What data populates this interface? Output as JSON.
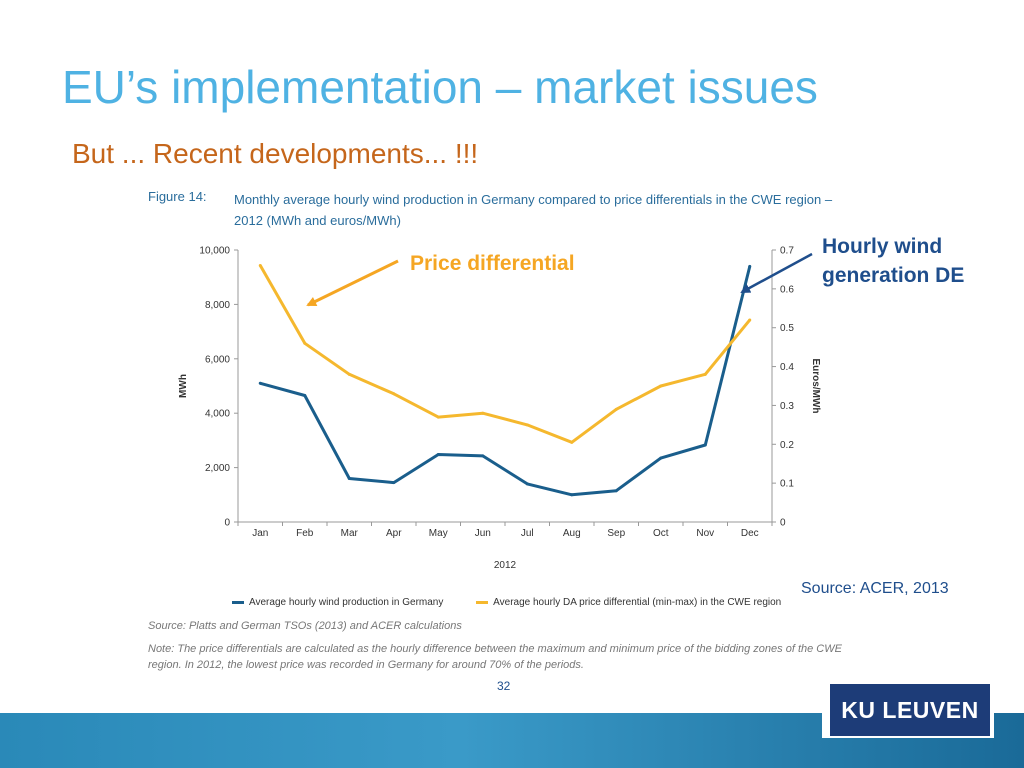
{
  "slide": {
    "title": "EU’s implementation – market issues",
    "subtitle": "But ... Recent developments... !!!",
    "page_number": "32",
    "logo_text": "KU LEUVEN",
    "source": "Source: ACER, 2013"
  },
  "figure": {
    "label": "Figure 14:",
    "caption": "Monthly average hourly wind production in Germany compared to price differentials in the CWE region – 2012 (MWh and euros/MWh)",
    "source_note": "Source: Platts and German TSOs (2013) and ACER calculations",
    "note": "Note: The price differentials are calculated as the hourly difference between the maximum and minimum price of the bidding zones of the CWE region. In 2012, the lowest price was recorded in Germany for around 70% of the periods."
  },
  "annotations": {
    "price": "Price differential",
    "wind": "Hourly wind generation DE"
  },
  "chart_data": {
    "type": "line",
    "xlabel": "2012",
    "ylabel": "MWh",
    "y2label": "Euros/MWh",
    "categories": [
      "Jan",
      "Feb",
      "Mar",
      "Apr",
      "May",
      "Jun",
      "Jul",
      "Aug",
      "Sep",
      "Oct",
      "Nov",
      "Dec"
    ],
    "ylim": [
      0,
      10000
    ],
    "y_ticks": [
      "0",
      "2,000",
      "4,000",
      "6,000",
      "8,000",
      "10,000"
    ],
    "y2lim": [
      0,
      0.7
    ],
    "y2_ticks": [
      "0",
      "0.1",
      "0.2",
      "0.3",
      "0.4",
      "0.5",
      "0.6",
      "0.7"
    ],
    "grid": false,
    "legend_position": "bottom",
    "series": [
      {
        "name": "Average hourly wind production in Germany",
        "axis": "left",
        "color": "#1a5e8c",
        "values": [
          5100,
          4650,
          1600,
          1450,
          2480,
          2430,
          1400,
          1000,
          1150,
          2350,
          2830,
          9400
        ]
      },
      {
        "name": "Average hourly DA price differential (min-max) in the CWE region",
        "axis": "right",
        "color": "#f5b82e",
        "values": [
          0.66,
          0.46,
          0.38,
          0.33,
          0.27,
          0.28,
          0.25,
          0.205,
          0.29,
          0.35,
          0.38,
          0.52
        ]
      }
    ]
  },
  "colors": {
    "title": "#4fb2e3",
    "subtitle": "#c5661b",
    "price_arrow": "#f5a623",
    "wind_arrow": "#1f4e8c"
  }
}
